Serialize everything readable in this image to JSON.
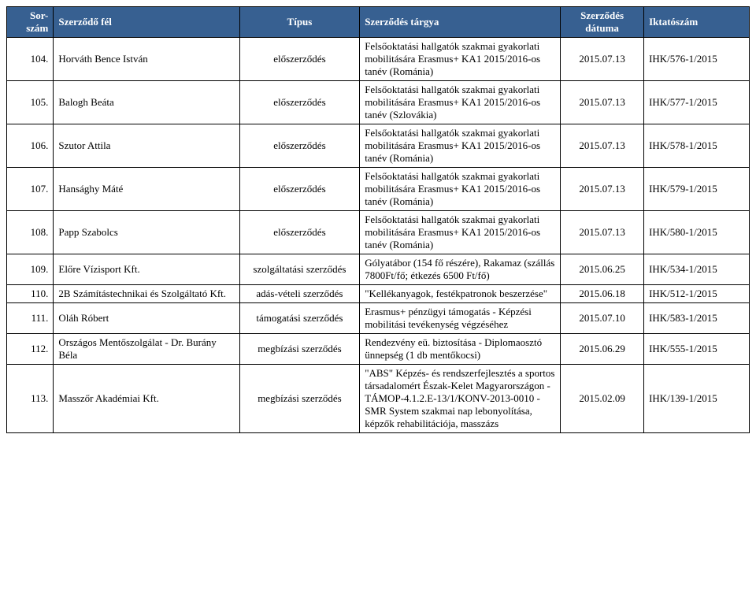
{
  "header_bg": "#376091",
  "header_color": "#ffffff",
  "columns": [
    "Sor-szám",
    "Szerződő fél",
    "Típus",
    "Szerződés tárgya",
    "Szerződés dátuma",
    "Iktatószám"
  ],
  "rows": [
    {
      "n": "104.",
      "party": "Horváth Bence István",
      "type": "előszerződés",
      "subject": "Felsőoktatási hallgatók szakmai gyakorlati mobilitására Erasmus+ KA1 2015/2016-os tanév (Románia)",
      "date": "2015.07.13",
      "ref": "IHK/576-1/2015"
    },
    {
      "n": "105.",
      "party": "Balogh Beáta",
      "type": "előszerződés",
      "subject": "Felsőoktatási hallgatók szakmai gyakorlati mobilitására Erasmus+ KA1 2015/2016-os tanév (Szlovákia)",
      "date": "2015.07.13",
      "ref": "IHK/577-1/2015"
    },
    {
      "n": "106.",
      "party": "Szutor Attila",
      "type": "előszerződés",
      "subject": "Felsőoktatási hallgatók szakmai gyakorlati mobilitására Erasmus+ KA1 2015/2016-os tanév (Románia)",
      "date": "2015.07.13",
      "ref": "IHK/578-1/2015"
    },
    {
      "n": "107.",
      "party": "Hansághy Máté",
      "type": "előszerződés",
      "subject": "Felsőoktatási hallgatók szakmai gyakorlati mobilitására Erasmus+ KA1 2015/2016-os tanév (Románia)",
      "date": "2015.07.13",
      "ref": "IHK/579-1/2015"
    },
    {
      "n": "108.",
      "party": "Papp Szabolcs",
      "type": "előszerződés",
      "subject": "Felsőoktatási hallgatók szakmai gyakorlati mobilitására Erasmus+ KA1 2015/2016-os tanév (Románia)",
      "date": "2015.07.13",
      "ref": "IHK/580-1/2015"
    },
    {
      "n": "109.",
      "party": "Előre Vízisport Kft.",
      "type": "szolgáltatási szerződés",
      "subject": "Gólyatábor (154 fő részére), Rakamaz (szállás 7800Ft/fő; étkezés 6500 Ft/fő)",
      "date": "2015.06.25",
      "ref": "IHK/534-1/2015"
    },
    {
      "n": "110.",
      "party": "2B Számítástechnikai és Szolgáltató Kft.",
      "type": "adás-vételi szerződés",
      "subject": "\"Kellékanyagok, festékpatronok beszerzése\"",
      "date": "2015.06.18",
      "ref": "IHK/512-1/2015"
    },
    {
      "n": "111.",
      "party": "Oláh Róbert",
      "type": "támogatási szerződés",
      "subject": "Erasmus+ pénzügyi támogatás - Képzési mobilitási tevékenység végzéséhez",
      "date": "2015.07.10",
      "ref": "IHK/583-1/2015"
    },
    {
      "n": "112.",
      "party": "Országos Mentőszolgálat - Dr. Burány Béla",
      "type": "megbízási szerződés",
      "subject": "Rendezvény eü. biztosítása - Diplomaosztó ünnepség (1 db mentőkocsi)",
      "date": "2015.06.29",
      "ref": "IHK/555-1/2015"
    },
    {
      "n": "113.",
      "party": "Masszőr Akadémiai Kft.",
      "type": "megbízási szerződés",
      "subject": "\"ABS\" Képzés- és rendszerfejlesztés a sportos társadalomért Észak-Kelet Magyarországon - TÁMOP-4.1.2.E-13/1/KONV-2013-0010 - SMR System szakmai nap lebonyolítása, képzők rehabilitációja, masszázs",
      "date": "2015.02.09",
      "ref": "IHK/139-1/2015"
    }
  ]
}
